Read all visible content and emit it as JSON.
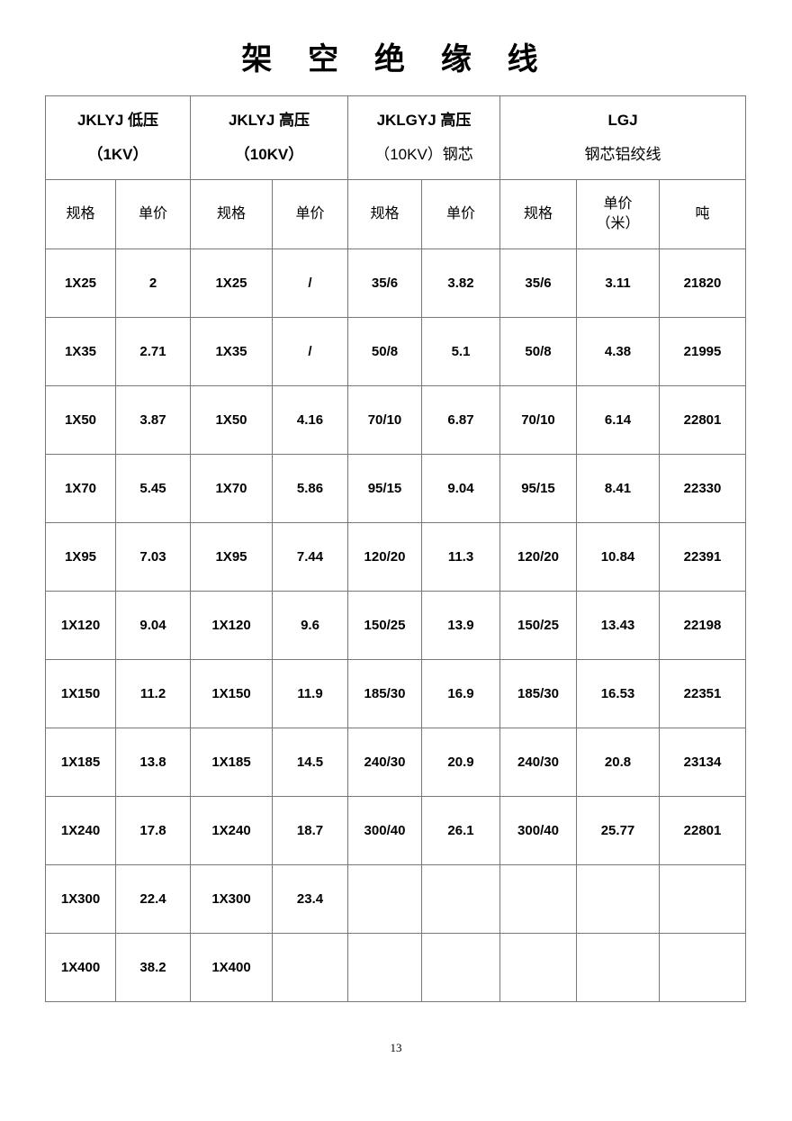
{
  "title": "架 空 绝 缘 线",
  "groups": [
    {
      "line1": "JKLYJ 低压",
      "line2": "（1KV）"
    },
    {
      "line1": "JKLYJ 高压",
      "line2": "（10KV）"
    },
    {
      "line1": "JKLGYJ 高压",
      "line2": "（10KV）钢芯"
    },
    {
      "line1": "LGJ",
      "line2": "钢芯铝绞线"
    }
  ],
  "subheaders": [
    "规格",
    "单价",
    "规格",
    "单价",
    "规格",
    "单价",
    "规格",
    "单价\n（米）",
    "吨"
  ],
  "rows": [
    [
      "1X25",
      "2",
      "1X25",
      "/",
      "35/6",
      "3.82",
      "35/6",
      "3.11",
      "21820"
    ],
    [
      "1X35",
      "2.71",
      "1X35",
      "/",
      "50/8",
      "5.1",
      "50/8",
      "4.38",
      "21995"
    ],
    [
      "1X50",
      "3.87",
      "1X50",
      "4.16",
      "70/10",
      "6.87",
      "70/10",
      "6.14",
      "22801"
    ],
    [
      "1X70",
      "5.45",
      "1X70",
      "5.86",
      "95/15",
      "9.04",
      "95/15",
      "8.41",
      "22330"
    ],
    [
      "1X95",
      "7.03",
      "1X95",
      "7.44",
      "120/20",
      "11.3",
      "120/20",
      "10.84",
      "22391"
    ],
    [
      "1X120",
      "9.04",
      "1X120",
      "9.6",
      "150/25",
      "13.9",
      "150/25",
      "13.43",
      "22198"
    ],
    [
      "1X150",
      "11.2",
      "1X150",
      "11.9",
      "185/30",
      "16.9",
      "185/30",
      "16.53",
      "22351"
    ],
    [
      "1X185",
      "13.8",
      "1X185",
      "14.5",
      "240/30",
      "20.9",
      "240/30",
      "20.8",
      "23134"
    ],
    [
      "1X240",
      "17.8",
      "1X240",
      "18.7",
      "300/40",
      "26.1",
      "300/40",
      "25.77",
      "22801"
    ],
    [
      "1X300",
      "22.4",
      "1X300",
      "23.4",
      "",
      "",
      "",
      "",
      ""
    ],
    [
      "1X400",
      "38.2",
      "1X400",
      "",
      "",
      "",
      "",
      "",
      ""
    ]
  ],
  "page_number": "13"
}
